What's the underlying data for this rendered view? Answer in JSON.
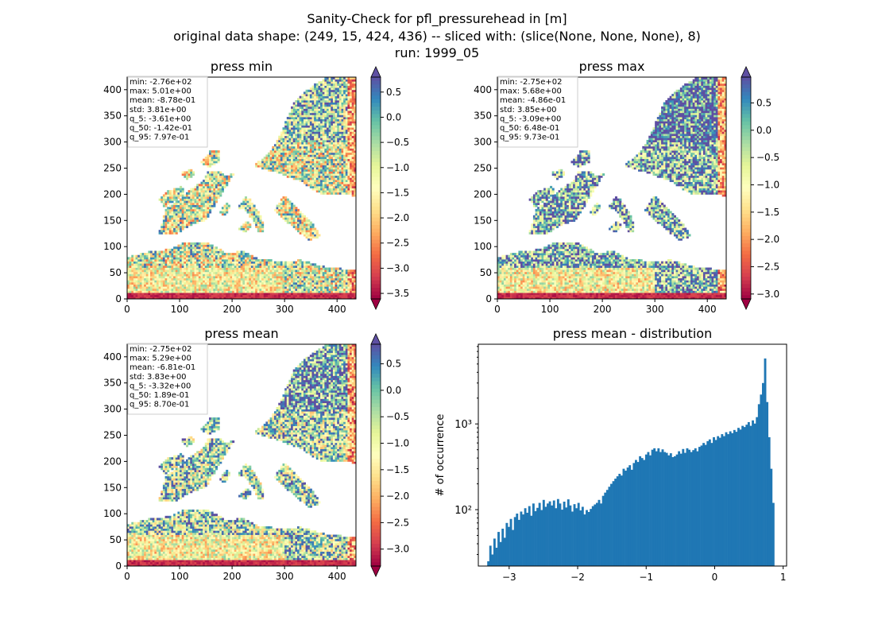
{
  "figure": {
    "title_lines": [
      "Sanity-Check for pfl_pressurehead in [m]",
      "original data shape: (249, 15, 424, 436) -- sliced with: (slice(None, None, None), 8)",
      "run: 1999_05"
    ]
  },
  "chart_data": [
    {
      "type": "heatmap",
      "title": "press min",
      "colormap": "Spectral",
      "clim": [
        -3.61,
        0.797
      ],
      "colorbar_ticks": [
        "0.5",
        "0.0",
        "−0.5",
        "−1.0",
        "−1.5",
        "−2.0",
        "−2.5",
        "−3.0",
        "−3.5"
      ],
      "colorbar_tick_values": [
        0.5,
        0.0,
        -0.5,
        -1.0,
        -1.5,
        -2.0,
        -2.5,
        -3.0,
        -3.5
      ],
      "xlim": [
        0,
        436
      ],
      "ylim": [
        0,
        424
      ],
      "xticks": [
        0,
        100,
        200,
        300,
        400
      ],
      "yticks": [
        0,
        50,
        100,
        150,
        200,
        250,
        300,
        350,
        400
      ],
      "stats": [
        "min: -2.76e+02",
        "max: 5.01e+00",
        "mean: -8.78e-01",
        "std: 3.81e+00",
        "q_5: -3.61e+00",
        "q_50: -1.42e-01",
        "q_95: 7.97e-01"
      ]
    },
    {
      "type": "heatmap",
      "title": "press max",
      "colormap": "Spectral",
      "clim": [
        -3.09,
        0.973
      ],
      "colorbar_ticks": [
        "0.5",
        "0.0",
        "−0.5",
        "−1.0",
        "−1.5",
        "−2.0",
        "−2.5",
        "−3.0"
      ],
      "colorbar_tick_values": [
        0.5,
        0.0,
        -0.5,
        -1.0,
        -1.5,
        -2.0,
        -2.5,
        -3.0
      ],
      "xlim": [
        0,
        436
      ],
      "ylim": [
        0,
        424
      ],
      "xticks": [
        0,
        100,
        200,
        300,
        400
      ],
      "yticks": [
        0,
        50,
        100,
        150,
        200,
        250,
        300,
        350,
        400
      ],
      "stats": [
        "min: -2.75e+02",
        "max: 5.68e+00",
        "mean: -4.86e-01",
        "std: 3.85e+00",
        "q_5: -3.09e+00",
        "q_50: 6.48e-01",
        "q_95: 9.73e-01"
      ]
    },
    {
      "type": "heatmap",
      "title": "press mean",
      "colormap": "Spectral",
      "clim": [
        -3.32,
        0.87
      ],
      "colorbar_ticks": [
        "0.5",
        "0.0",
        "−0.5",
        "−1.0",
        "−1.5",
        "−2.0",
        "−2.5",
        "−3.0"
      ],
      "colorbar_tick_values": [
        0.5,
        0.0,
        -0.5,
        -1.0,
        -1.5,
        -2.0,
        -2.5,
        -3.0
      ],
      "xlim": [
        0,
        436
      ],
      "ylim": [
        0,
        424
      ],
      "xticks": [
        0,
        100,
        200,
        300,
        400
      ],
      "yticks": [
        0,
        50,
        100,
        150,
        200,
        250,
        300,
        350,
        400
      ],
      "stats": [
        "min: -2.75e+02",
        "max: 5.29e+00",
        "mean: -6.81e-01",
        "std: 3.83e+00",
        "q_5: -3.32e+00",
        "q_50: 1.89e-01",
        "q_95: 8.70e-01"
      ]
    },
    {
      "type": "bar",
      "title": "press mean - distribution",
      "ylabel": "# of occurrence",
      "xlabel": "",
      "yscale": "log",
      "xlim": [
        -3.45,
        1.05
      ],
      "ylim": [
        22,
        8500
      ],
      "xticks": [
        -3,
        -2,
        -1,
        0,
        1
      ],
      "xtick_labels": [
        "−3",
        "−2",
        "−1",
        "0",
        "1"
      ],
      "yticks": [
        100,
        1000
      ],
      "ytick_labels": [
        "10²",
        "10³"
      ],
      "bar_color": "#1f77b4",
      "bin_range": [
        -3.32,
        0.87
      ],
      "counts": [
        25,
        38,
        30,
        46,
        36,
        55,
        42,
        60,
        47,
        70,
        63,
        78,
        58,
        82,
        90,
        76,
        95,
        88,
        104,
        92,
        110,
        85,
        118,
        96,
        105,
        120,
        99,
        130,
        108,
        118,
        125,
        112,
        128,
        104,
        133,
        118,
        100,
        124,
        106,
        132,
        112,
        95,
        116,
        104,
        120,
        98,
        108,
        88,
        99,
        94,
        102,
        110,
        115,
        120,
        130,
        118,
        145,
        158,
        170,
        185,
        200,
        215,
        230,
        245,
        262,
        250,
        300,
        285,
        310,
        330,
        292,
        350,
        380,
        360,
        420,
        400,
        380,
        440,
        470,
        430,
        500,
        520,
        480,
        520,
        470,
        505,
        470,
        460,
        430,
        455,
        410,
        420,
        440,
        480,
        450,
        510,
        460,
        520,
        500,
        470,
        495,
        520,
        480,
        540,
        560,
        600,
        570,
        630,
        660,
        600,
        700,
        650,
        720,
        690,
        760,
        720,
        800,
        760,
        820,
        780,
        850,
        810,
        900,
        860,
        950,
        920,
        980,
        1050,
        950,
        1100,
        1010,
        1200,
        1700,
        2200,
        3000,
        5800,
        1800,
        700,
        300,
        120
      ]
    }
  ]
}
